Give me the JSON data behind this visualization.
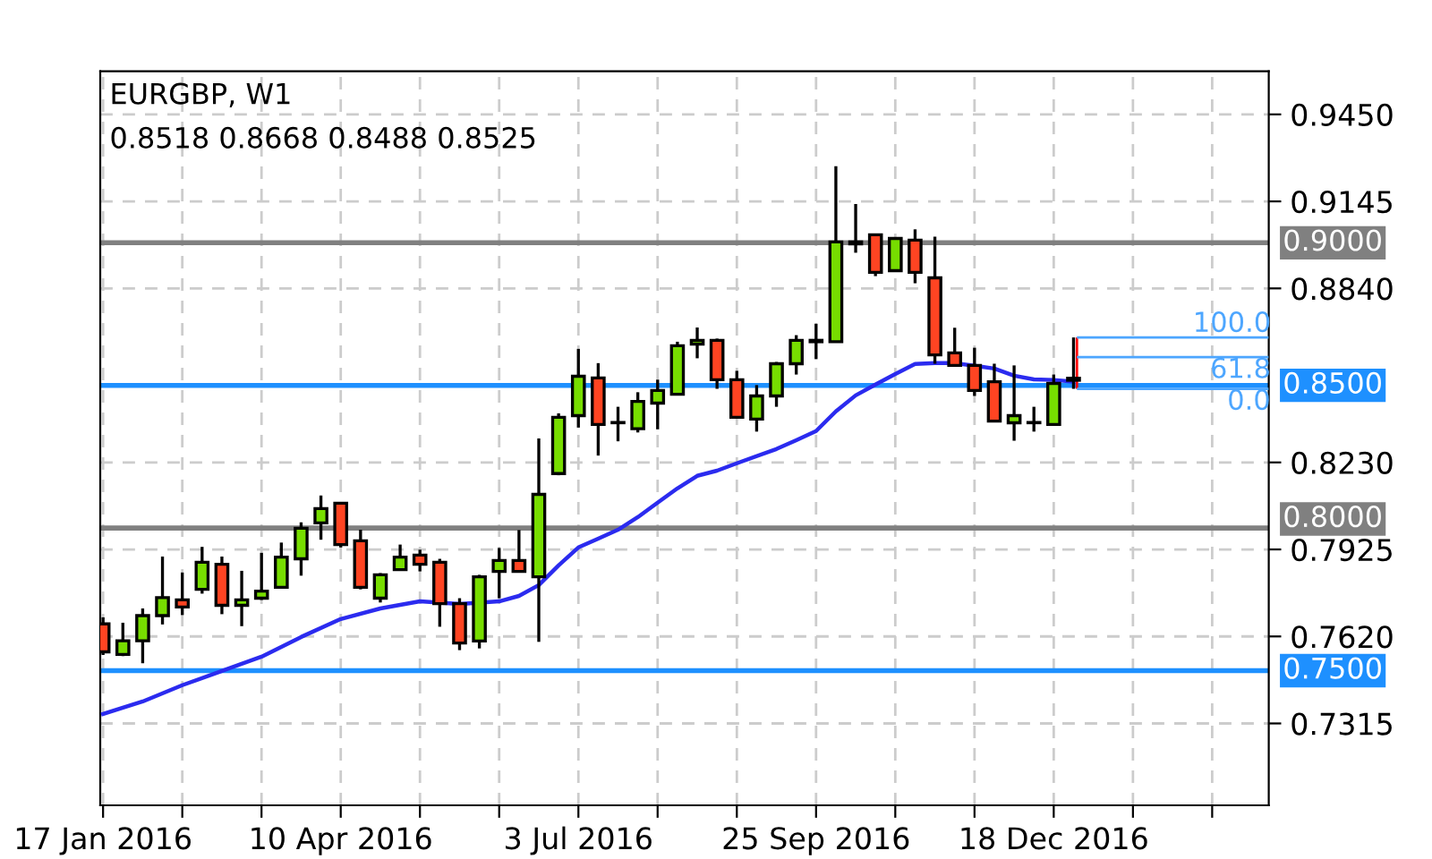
{
  "chart_data": {
    "type": "candlestick",
    "title": "EURGBP, W1",
    "subtitle": "0.8518 0.8668 0.8488 0.8525",
    "x": [
      "2016-01-17",
      "2016-01-24",
      "2016-01-31",
      "2016-02-07",
      "2016-02-14",
      "2016-02-21",
      "2016-02-28",
      "2016-03-06",
      "2016-03-13",
      "2016-03-20",
      "2016-03-27",
      "2016-04-03",
      "2016-04-10",
      "2016-04-17",
      "2016-04-24",
      "2016-05-01",
      "2016-05-08",
      "2016-05-15",
      "2016-05-22",
      "2016-05-29",
      "2016-06-05",
      "2016-06-12",
      "2016-06-19",
      "2016-06-26",
      "2016-07-03",
      "2016-07-10",
      "2016-07-17",
      "2016-07-24",
      "2016-07-31",
      "2016-08-07",
      "2016-08-14",
      "2016-08-21",
      "2016-08-28",
      "2016-09-04",
      "2016-09-11",
      "2016-09-18",
      "2016-09-25",
      "2016-10-02",
      "2016-10-09",
      "2016-10-16",
      "2016-10-23",
      "2016-10-30",
      "2016-11-06",
      "2016-11-13",
      "2016-11-20",
      "2016-11-27",
      "2016-12-04",
      "2016-12-11",
      "2016-12-18",
      "2016-12-25"
    ],
    "ohlc": [
      [
        0.7664,
        0.7687,
        0.7555,
        0.7566
      ],
      [
        0.7557,
        0.7668,
        0.7551,
        0.7605
      ],
      [
        0.7605,
        0.7718,
        0.7526,
        0.7693
      ],
      [
        0.7693,
        0.79,
        0.7662,
        0.7756
      ],
      [
        0.7748,
        0.7844,
        0.7695,
        0.7723
      ],
      [
        0.7785,
        0.7934,
        0.777,
        0.788
      ],
      [
        0.7873,
        0.79,
        0.7698,
        0.7729
      ],
      [
        0.7729,
        0.785,
        0.7656,
        0.7748
      ],
      [
        0.7754,
        0.7913,
        0.7748,
        0.7779
      ],
      [
        0.7792,
        0.7949,
        0.7792,
        0.7898
      ],
      [
        0.7892,
        0.802,
        0.7833,
        0.7999
      ],
      [
        0.8018,
        0.8114,
        0.7959,
        0.8068
      ],
      [
        0.8087,
        0.809,
        0.7932,
        0.7942
      ],
      [
        0.7955,
        0.7994,
        0.7785,
        0.7792
      ],
      [
        0.7754,
        0.7842,
        0.7739,
        0.7836
      ],
      [
        0.7854,
        0.7942,
        0.785,
        0.7898
      ],
      [
        0.7905,
        0.7924,
        0.7848,
        0.7873
      ],
      [
        0.788,
        0.7892,
        0.7654,
        0.7735
      ],
      [
        0.7735,
        0.7754,
        0.7572,
        0.7597
      ],
      [
        0.7604,
        0.7836,
        0.7578,
        0.7829
      ],
      [
        0.7848,
        0.793,
        0.7754,
        0.7886
      ],
      [
        0.7886,
        0.7993,
        0.7845,
        0.7848
      ],
      [
        0.7829,
        0.8314,
        0.7601,
        0.8118
      ],
      [
        0.8191,
        0.8402,
        0.8185,
        0.8388
      ],
      [
        0.8394,
        0.8628,
        0.8352,
        0.8532
      ],
      [
        0.8526,
        0.8578,
        0.8254,
        0.8363
      ],
      [
        0.8369,
        0.8425,
        0.8304,
        0.837
      ],
      [
        0.8348,
        0.8476,
        0.8335,
        0.8444
      ],
      [
        0.8438,
        0.852,
        0.8346,
        0.8482
      ],
      [
        0.8469,
        0.8653,
        0.8465,
        0.8639
      ],
      [
        0.8645,
        0.8703,
        0.8595,
        0.8658
      ],
      [
        0.8658,
        0.8664,
        0.8488,
        0.852
      ],
      [
        0.852,
        0.8551,
        0.8385,
        0.8388
      ],
      [
        0.8382,
        0.8501,
        0.8338,
        0.8463
      ],
      [
        0.8463,
        0.8582,
        0.8425,
        0.8576
      ],
      [
        0.8576,
        0.8676,
        0.8538,
        0.8658
      ],
      [
        0.8658,
        0.8716,
        0.8592,
        0.8653
      ],
      [
        0.8653,
        0.9268,
        0.865,
        0.9003
      ],
      [
        0.9003,
        0.9136,
        0.8965,
        0.8996
      ],
      [
        0.9028,
        0.903,
        0.8883,
        0.8896
      ],
      [
        0.8902,
        0.9018,
        0.89,
        0.9015
      ],
      [
        0.9009,
        0.9047,
        0.8858,
        0.8896
      ],
      [
        0.8877,
        0.9021,
        0.8576,
        0.8607
      ],
      [
        0.8614,
        0.8702,
        0.8568,
        0.857
      ],
      [
        0.857,
        0.8632,
        0.8463,
        0.8482
      ],
      [
        0.8513,
        0.8576,
        0.8372,
        0.8375
      ],
      [
        0.8369,
        0.857,
        0.8306,
        0.8394
      ],
      [
        0.8369,
        0.8425,
        0.8338,
        0.837
      ],
      [
        0.8363,
        0.8538,
        0.836,
        0.8507
      ],
      [
        0.8518,
        0.8668,
        0.8488,
        0.8525
      ]
    ],
    "colors": [
      "#ff4422",
      "#77dd00",
      "#77dd00",
      "#77dd00",
      "#ff4422",
      "#77dd00",
      "#ff4422",
      "#77dd00",
      "#77dd00",
      "#77dd00",
      "#77dd00",
      "#77dd00",
      "#ff4422",
      "#ff4422",
      "#77dd00",
      "#77dd00",
      "#ff4422",
      "#ff4422",
      "#ff4422",
      "#77dd00",
      "#77dd00",
      "#ff4422",
      "#77dd00",
      "#77dd00",
      "#77dd00",
      "#ff4422",
      "#77dd00",
      "#77dd00",
      "#77dd00",
      "#77dd00",
      "#77dd00",
      "#ff4422",
      "#ff4422",
      "#77dd00",
      "#77dd00",
      "#77dd00",
      "#ff4422",
      "#77dd00",
      "#ff4422",
      "#ff4422",
      "#77dd00",
      "#ff4422",
      "#ff4422",
      "#ff4422",
      "#ff4422",
      "#ff4422",
      "#77dd00",
      "#77dd00",
      "#77dd00",
      "#77dd00"
    ],
    "series": [
      {
        "type": "line",
        "color": "#2b2bef",
        "line_style": "solid",
        "x": [
          "2016-01-17",
          "2016-01-31",
          "2016-02-14",
          "2016-02-28",
          "2016-03-13",
          "2016-03-27",
          "2016-04-10",
          "2016-04-24",
          "2016-05-08",
          "2016-05-22",
          "2016-06-05",
          "2016-06-12",
          "2016-06-19",
          "2016-06-26",
          "2016-07-03",
          "2016-07-10",
          "2016-07-17",
          "2016-07-24",
          "2016-07-31",
          "2016-08-07",
          "2016-08-14",
          "2016-08-21",
          "2016-08-28",
          "2016-09-11",
          "2016-09-18",
          "2016-09-25",
          "2016-10-02",
          "2016-10-09",
          "2016-10-16",
          "2016-10-23",
          "2016-10-30",
          "2016-11-06",
          "2016-11-13",
          "2016-11-20",
          "2016-11-27",
          "2016-12-04",
          "2016-12-11",
          "2016-12-18",
          "2016-12-25"
        ],
        "values": [
          0.7348,
          0.7392,
          0.7449,
          0.7499,
          0.7549,
          0.7618,
          0.7681,
          0.7718,
          0.7743,
          0.7734,
          0.7743,
          0.7762,
          0.78,
          0.7869,
          0.7932,
          0.7963,
          0.7994,
          0.8038,
          0.8089,
          0.8139,
          0.8183,
          0.8201,
          0.8227,
          0.8277,
          0.8308,
          0.834,
          0.8409,
          0.8465,
          0.8503,
          0.854,
          0.8575,
          0.8578,
          0.8578,
          0.8569,
          0.8559,
          0.8534,
          0.8521,
          0.8519,
          0.8513
        ]
      }
    ],
    "ref_lines": [
      {
        "axis": "y",
        "value": 0.9,
        "label": "0.9000",
        "color": "#808080"
      },
      {
        "axis": "y",
        "value": 0.85,
        "label": "0.8500",
        "color": "#1e90ff"
      },
      {
        "axis": "y",
        "value": 0.8,
        "label": "0.8000",
        "color": "#808080"
      },
      {
        "axis": "y",
        "value": 0.75,
        "label": "0.7500",
        "color": "#1e90ff"
      },
      {
        "axis": "y",
        "value": 0.8668,
        "color": "#4da6ff"
      },
      {
        "axis": "y",
        "value": 0.8599,
        "color": "#4da6ff"
      },
      {
        "axis": "y",
        "value": 0.8488,
        "color": "#4da6ff"
      }
    ],
    "annotations": [
      {
        "text": "100.0",
        "x": "2017-02-19",
        "y": 0.8668
      },
      {
        "text": "61.8",
        "x": "2017-02-22",
        "y": 0.8599
      },
      {
        "text": "0.0",
        "x": "2017-02-25",
        "y": 0.8488
      }
    ],
    "xlim": [
      "2016-01-16",
      "2017-03-04"
    ],
    "xticks": [
      {
        "value": "2016-01-17",
        "label": "17 Jan 2016"
      },
      {
        "value": "2016-02-14",
        "label": null
      },
      {
        "value": "2016-03-13",
        "label": null
      },
      {
        "value": "2016-04-10",
        "label": "10 Apr 2016"
      },
      {
        "value": "2016-05-08",
        "label": null
      },
      {
        "value": "2016-06-05",
        "label": null
      },
      {
        "value": "2016-07-03",
        "label": "3 Jul 2016"
      },
      {
        "value": "2016-07-31",
        "label": null
      },
      {
        "value": "2016-08-28",
        "label": null
      },
      {
        "value": "2016-09-25",
        "label": "25 Sep 2016"
      },
      {
        "value": "2016-10-23",
        "label": null
      },
      {
        "value": "2016-11-20",
        "label": null
      },
      {
        "value": "2016-12-18",
        "label": "18 Dec 2016"
      },
      {
        "value": "2017-01-15",
        "label": null
      },
      {
        "value": "2017-02-12",
        "label": null
      }
    ],
    "ylim": [
      0.7028,
      0.9601
    ],
    "yticks": [
      {
        "value": 0.7315,
        "label": "0.7315"
      },
      {
        "value": 0.762,
        "label": "0.7620"
      },
      {
        "value": 0.7925,
        "label": "0.7925"
      },
      {
        "value": 0.823,
        "label": "0.8230"
      },
      {
        "value": 0.884,
        "label": "0.8840"
      },
      {
        "value": 0.9145,
        "label": "0.9145"
      },
      {
        "value": 0.945,
        "label": "0.9450"
      }
    ],
    "grid": true,
    "legend": false
  }
}
